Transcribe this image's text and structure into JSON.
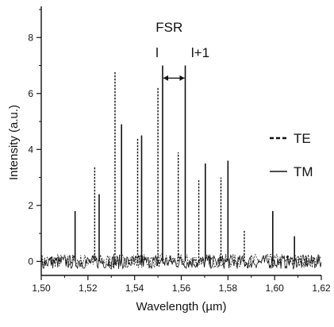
{
  "chart_data": {
    "type": "line",
    "title": "",
    "xlabel": "Wavelength (µm)",
    "ylabel": "Intensity (a.u.)",
    "xlim": [
      1.5,
      1.62
    ],
    "ylim": [
      -0.5,
      9.0
    ],
    "x_ticks": [
      1.5,
      1.52,
      1.54,
      1.56,
      1.58,
      1.6,
      1.62
    ],
    "x_tick_labels": [
      "1,50",
      "1,52",
      "1,54",
      "1,56",
      "1,58",
      "1,60",
      "1,62"
    ],
    "y_ticks": [
      0,
      2,
      4,
      6,
      8
    ],
    "y_tick_labels": [
      "0",
      "2",
      "4",
      "6",
      "8"
    ],
    "grid": false,
    "legend_position": "right",
    "noise_level": 0.25,
    "series": [
      {
        "name": "TE",
        "style": "dashed",
        "peaks": [
          {
            "x": 1.5229,
            "y": 3.4
          },
          {
            "x": 1.5316,
            "y": 6.8
          },
          {
            "x": 1.5413,
            "y": 4.4
          },
          {
            "x": 1.55,
            "y": 6.2
          },
          {
            "x": 1.5587,
            "y": 3.9
          },
          {
            "x": 1.5675,
            "y": 2.9
          },
          {
            "x": 1.577,
            "y": 3.0
          },
          {
            "x": 1.587,
            "y": 1.1
          }
        ]
      },
      {
        "name": "TM",
        "style": "solid",
        "peaks": [
          {
            "x": 1.5145,
            "y": 1.8
          },
          {
            "x": 1.5248,
            "y": 2.4
          },
          {
            "x": 1.5344,
            "y": 4.9
          },
          {
            "x": 1.543,
            "y": 4.5
          },
          {
            "x": 1.552,
            "y": 7.0
          },
          {
            "x": 1.5617,
            "y": 7.0
          },
          {
            "x": 1.5703,
            "y": 3.5
          },
          {
            "x": 1.58,
            "y": 3.6
          },
          {
            "x": 1.5992,
            "y": 1.8
          },
          {
            "x": 1.6085,
            "y": 0.9
          }
        ]
      }
    ],
    "annotations": {
      "fsr": "FSR",
      "mode_l": "l",
      "mode_l1": "l+1",
      "fsr_x": [
        1.552,
        1.5617
      ],
      "fsr_y": 6.55
    }
  }
}
